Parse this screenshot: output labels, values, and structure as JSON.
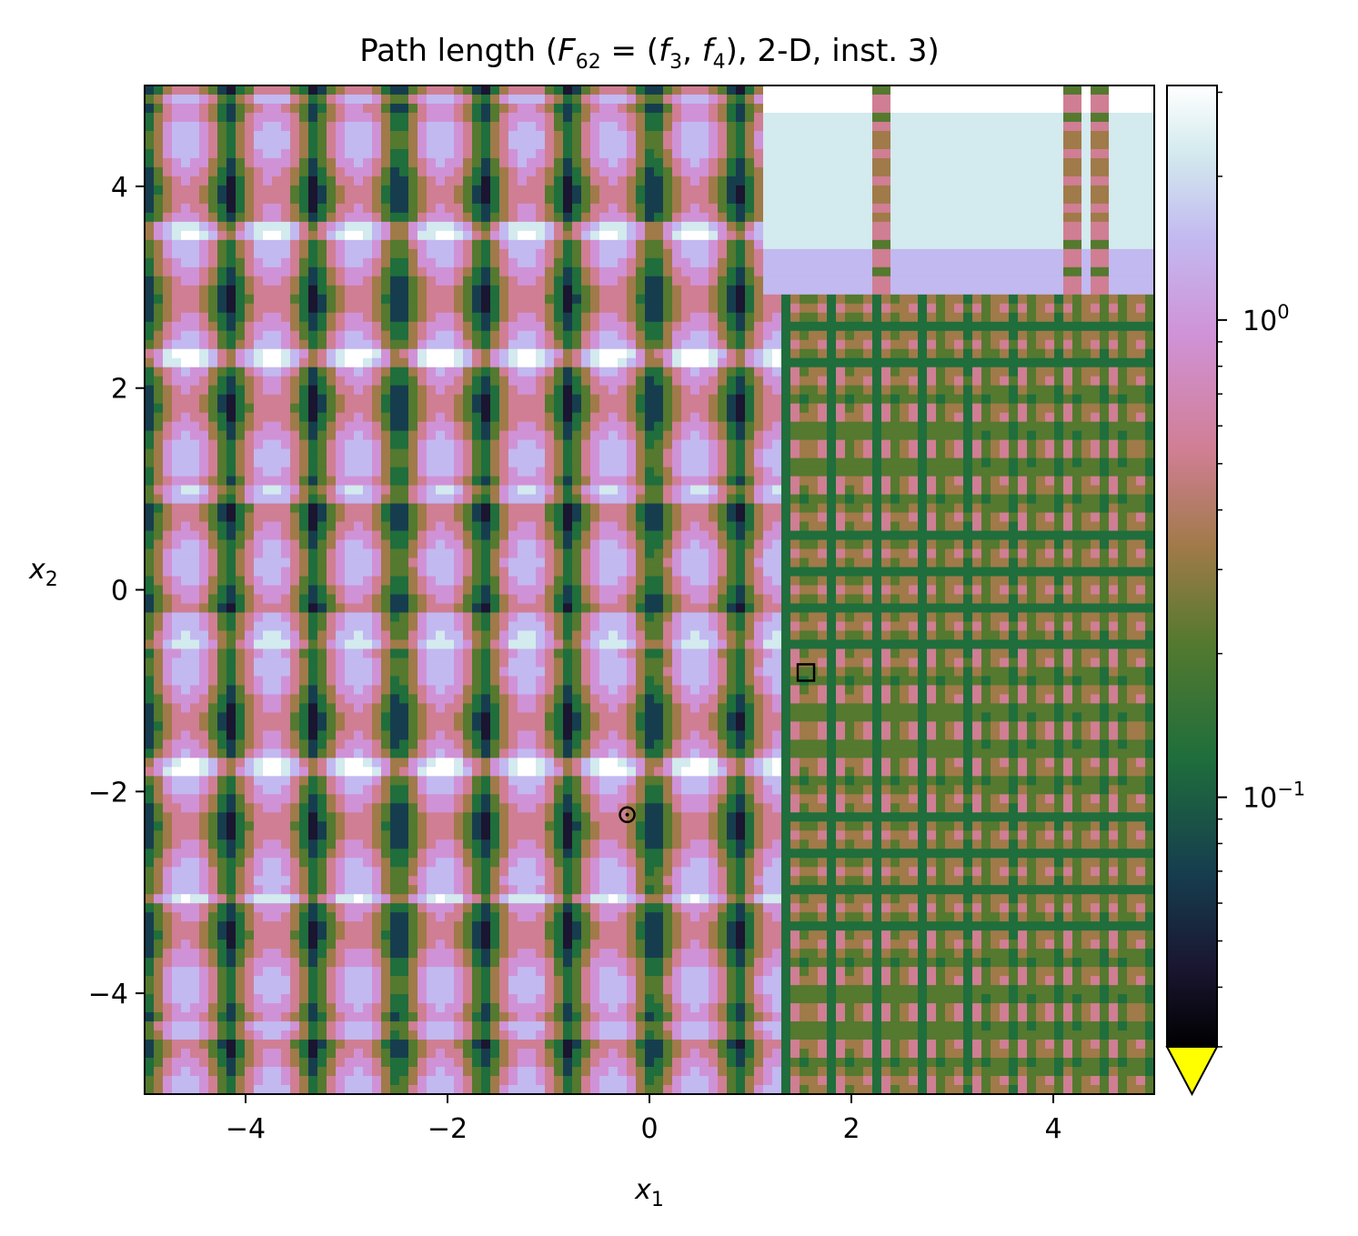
{
  "chart_data": {
    "type": "heatmap",
    "title": "Path length (F₆₂ = (f₃, f₄), 2-D, inst. 3)",
    "title_parts": {
      "prefix": "Path length (",
      "F": "F",
      "F_sub": "62",
      "eq": " = (",
      "f1": "f",
      "f1_sub": "3",
      "comma": ", ",
      "f2": "f",
      "f2_sub": "4",
      "suffix": "), 2-D, inst. 3)"
    },
    "xlabel": {
      "base": "x",
      "sub": "1"
    },
    "ylabel": {
      "base": "x",
      "sub": "2"
    },
    "xlim": [
      -5,
      5
    ],
    "ylim": [
      -5,
      5
    ],
    "x_ticks": [
      {
        "value": -4,
        "label": "−4"
      },
      {
        "value": -2,
        "label": "−2"
      },
      {
        "value": 0,
        "label": "0"
      },
      {
        "value": 2,
        "label": "2"
      },
      {
        "value": 4,
        "label": "4"
      }
    ],
    "y_ticks": [
      {
        "value": 4,
        "label": "4"
      },
      {
        "value": 2,
        "label": "2"
      },
      {
        "value": 0,
        "label": "0"
      },
      {
        "value": -2,
        "label": "−2"
      },
      {
        "value": -4,
        "label": "−4"
      }
    ],
    "colorbar": {
      "scale": "log",
      "colormap": "cubehelix",
      "range": [
        0.03,
        3.1
      ],
      "extend": "min",
      "extend_color": "#ffff00",
      "major_ticks": [
        {
          "value": 1,
          "label_base": "10",
          "label_exp": "0"
        },
        {
          "value": 0.1,
          "label_base": "10",
          "label_exp": "−1"
        }
      ],
      "minor_ticks": [
        0.03,
        0.04,
        0.05,
        0.06,
        0.07,
        0.08,
        0.09,
        0.2,
        0.3,
        0.4,
        0.5,
        0.6,
        0.7,
        0.8,
        0.9,
        2,
        3
      ]
    },
    "markers": [
      {
        "shape": "circle",
        "x": -0.22,
        "y": -2.23
      },
      {
        "shape": "square",
        "x": 1.55,
        "y": -0.82
      }
    ],
    "grid": false
  }
}
